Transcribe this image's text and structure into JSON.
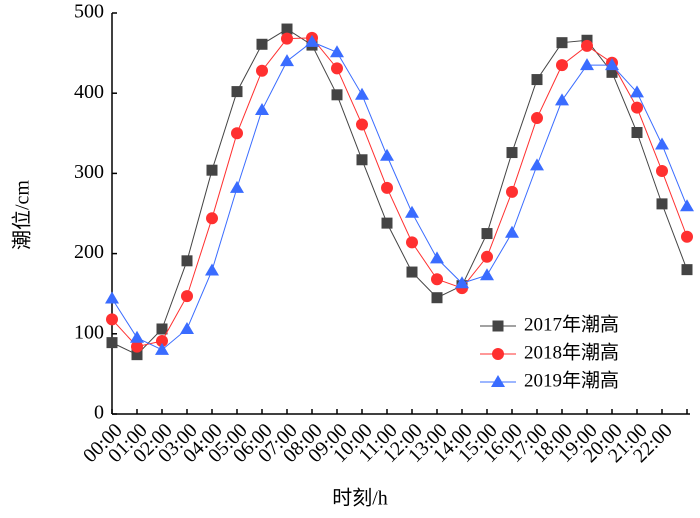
{
  "chart_data": {
    "type": "line",
    "x_label": "时刻/h",
    "y_label": "潮位/cm",
    "categories": [
      "00:00",
      "01:00",
      "02:00",
      "03:00",
      "04:00",
      "05:00",
      "06:00",
      "07:00",
      "08:00",
      "09:00",
      "10:00",
      "11:00",
      "12:00",
      "13:00",
      "14:00",
      "15:00",
      "16:00",
      "17:00",
      "18:00",
      "19:00",
      "20:00",
      "21:00",
      "22:00",
      null
    ],
    "series": [
      {
        "name": "2017年潮高",
        "color": "#444444",
        "marker": "square",
        "values": [
          89,
          74,
          106,
          191,
          304,
          402,
          461,
          480,
          460,
          398,
          317,
          238,
          177,
          145,
          160,
          225,
          326,
          417,
          463,
          466,
          426,
          351,
          262,
          180
        ]
      },
      {
        "name": "2018年潮高",
        "color": "#ff3030",
        "marker": "circle",
        "values": [
          118,
          84,
          91,
          147,
          244,
          350,
          428,
          468,
          469,
          431,
          361,
          282,
          214,
          168,
          157,
          196,
          277,
          369,
          435,
          459,
          438,
          382,
          303,
          221
        ]
      },
      {
        "name": "2019年潮高",
        "color": "#3a6cff",
        "marker": "triangle",
        "values": [
          144,
          95,
          80,
          106,
          179,
          282,
          379,
          440,
          464,
          451,
          398,
          322,
          251,
          194,
          163,
          173,
          226,
          310,
          391,
          435,
          435,
          401,
          336,
          259
        ]
      }
    ],
    "ylim": [
      0,
      500
    ],
    "yticks": [
      0,
      100,
      200,
      300,
      400,
      500
    ],
    "legend": "lower right"
  }
}
